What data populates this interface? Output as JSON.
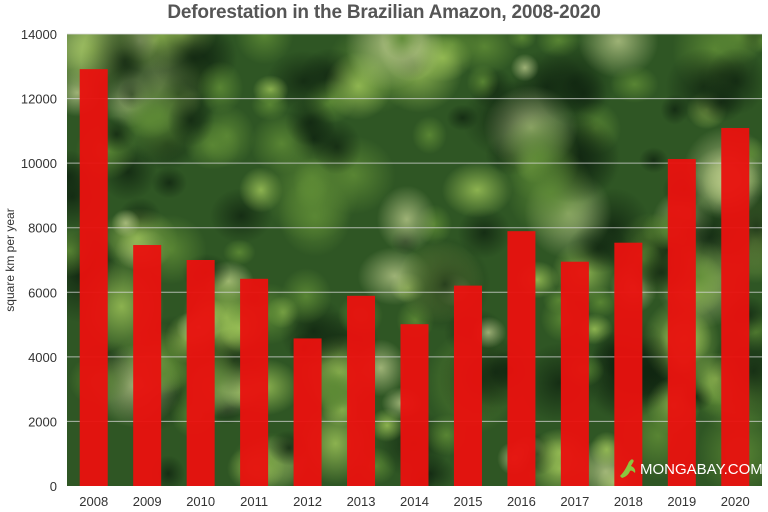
{
  "chart_data": {
    "type": "bar",
    "title": "Deforestation in the Brazilian Amazon, 2008-2020",
    "xlabel": "",
    "ylabel": "square km per year",
    "categories": [
      "2008",
      "2009",
      "2010",
      "2011",
      "2012",
      "2013",
      "2014",
      "2015",
      "2016",
      "2017",
      "2018",
      "2019",
      "2020"
    ],
    "values": [
      12911,
      7464,
      7000,
      6418,
      4571,
      5891,
      5012,
      6207,
      7893,
      6947,
      7536,
      10129,
      11088
    ],
    "ylim": [
      0,
      14000
    ],
    "yticks": [
      0,
      2000,
      4000,
      6000,
      8000,
      10000,
      12000,
      14000
    ],
    "grid": true,
    "legend": "none",
    "colors": {
      "bar": "#e8120f",
      "grid": "#d9d9d9",
      "forest_dark": "#1f3d1a",
      "forest_mid": "#3f6b2a",
      "forest_light": "#7fa044",
      "watermark_icon": "#8cc63f"
    }
  },
  "watermark": {
    "text": "MONGABAY.COM",
    "icon": "gecko-icon"
  }
}
